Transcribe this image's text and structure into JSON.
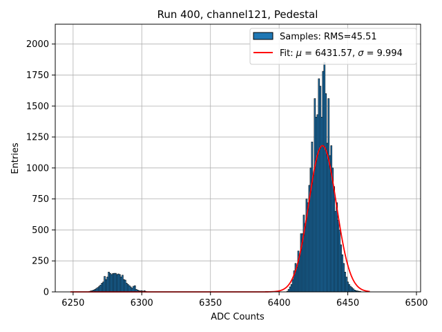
{
  "chart_data": {
    "type": "bar",
    "title": "Run 400, channel121, Pedestal",
    "xlabel": "ADC Counts",
    "ylabel": "Entries",
    "xlim": [
      6237,
      6503
    ],
    "ylim": [
      0,
      2160
    ],
    "xticks": [
      6250,
      6300,
      6350,
      6400,
      6450,
      6500
    ],
    "yticks": [
      0,
      250,
      500,
      750,
      1000,
      1250,
      1500,
      1750,
      2000
    ],
    "grid": true,
    "legend_position": "top-right",
    "colors": {
      "bars": "#1f77b4",
      "bar_edge": "#000000",
      "fit": "#ff0000",
      "grid": "#b0b0b0"
    },
    "legend": {
      "samples_label": "Samples: RMS=45.51",
      "fit_label_prefix": "Fit: ",
      "fit_mu_symbol": "μ",
      "fit_mu_text": " = 6431.57, ",
      "fit_sigma_symbol": "σ",
      "fit_sigma_text": " = 9.994"
    },
    "histogram": {
      "name": "Samples",
      "bin_width": 1,
      "bins": [
        [
          6262,
          4
        ],
        [
          6263,
          8
        ],
        [
          6264,
          10
        ],
        [
          6265,
          15
        ],
        [
          6266,
          20
        ],
        [
          6267,
          28
        ],
        [
          6268,
          35
        ],
        [
          6269,
          45
        ],
        [
          6270,
          55
        ],
        [
          6271,
          70
        ],
        [
          6272,
          80
        ],
        [
          6273,
          125
        ],
        [
          6274,
          100
        ],
        [
          6275,
          120
        ],
        [
          6276,
          160
        ],
        [
          6277,
          150
        ],
        [
          6278,
          140
        ],
        [
          6279,
          148
        ],
        [
          6280,
          150
        ],
        [
          6281,
          150
        ],
        [
          6282,
          140
        ],
        [
          6283,
          145
        ],
        [
          6284,
          140
        ],
        [
          6285,
          120
        ],
        [
          6286,
          135
        ],
        [
          6287,
          100
        ],
        [
          6288,
          95
        ],
        [
          6289,
          70
        ],
        [
          6290,
          60
        ],
        [
          6291,
          50
        ],
        [
          6292,
          40
        ],
        [
          6293,
          30
        ],
        [
          6294,
          45
        ],
        [
          6295,
          50
        ],
        [
          6296,
          20
        ],
        [
          6297,
          15
        ],
        [
          6298,
          10
        ],
        [
          6299,
          8
        ],
        [
          6300,
          10
        ],
        [
          6301,
          5
        ],
        [
          6302,
          10
        ],
        [
          6303,
          4
        ],
        [
          6406,
          5
        ],
        [
          6407,
          20
        ],
        [
          6408,
          40
        ],
        [
          6409,
          60
        ],
        [
          6410,
          100
        ],
        [
          6411,
          170
        ],
        [
          6412,
          230
        ],
        [
          6413,
          200
        ],
        [
          6414,
          330
        ],
        [
          6415,
          300
        ],
        [
          6416,
          470
        ],
        [
          6417,
          470
        ],
        [
          6418,
          620
        ],
        [
          6419,
          550
        ],
        [
          6420,
          750
        ],
        [
          6421,
          720
        ],
        [
          6422,
          860
        ],
        [
          6423,
          1000
        ],
        [
          6424,
          1210
        ],
        [
          6425,
          940
        ],
        [
          6426,
          1560
        ],
        [
          6427,
          1410
        ],
        [
          6428,
          1430
        ],
        [
          6429,
          1720
        ],
        [
          6430,
          1660
        ],
        [
          6431,
          1410
        ],
        [
          6432,
          1780
        ],
        [
          6433,
          1850
        ],
        [
          6434,
          1600
        ],
        [
          6435,
          1200
        ],
        [
          6436,
          1560
        ],
        [
          6437,
          1100
        ],
        [
          6438,
          1180
        ],
        [
          6439,
          1000
        ],
        [
          6440,
          850
        ],
        [
          6441,
          650
        ],
        [
          6442,
          720
        ],
        [
          6443,
          580
        ],
        [
          6444,
          500
        ],
        [
          6445,
          380
        ],
        [
          6446,
          300
        ],
        [
          6447,
          230
        ],
        [
          6448,
          160
        ],
        [
          6449,
          120
        ],
        [
          6450,
          80
        ],
        [
          6451,
          60
        ],
        [
          6452,
          45
        ],
        [
          6453,
          35
        ],
        [
          6454,
          25
        ],
        [
          6455,
          15
        ],
        [
          6456,
          10
        ],
        [
          6457,
          8
        ],
        [
          6458,
          5
        ],
        [
          6459,
          4
        ]
      ]
    },
    "fit": {
      "name": "Fit",
      "function": "gaussian",
      "mu": 6431.57,
      "sigma": 9.994,
      "amplitude": 1180,
      "x_range": [
        6248,
        6466
      ]
    }
  }
}
